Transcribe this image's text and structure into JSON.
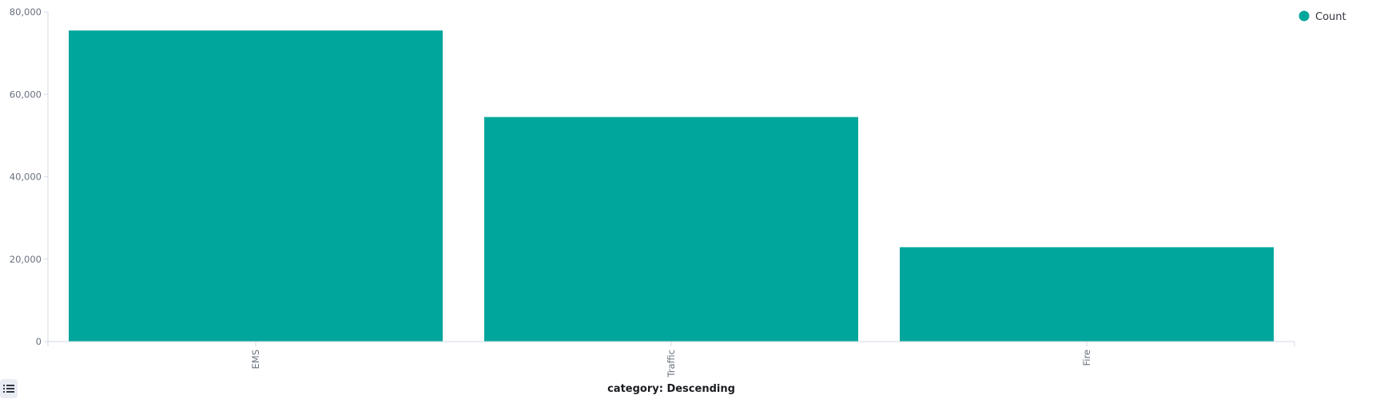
{
  "chart_data": {
    "type": "bar",
    "categories": [
      "EMS",
      "Traffic",
      "Fire"
    ],
    "series": [
      {
        "name": "Count",
        "values": [
          75500,
          54500,
          22900
        ]
      }
    ],
    "xlabel": "category: Descending",
    "ylabel": "",
    "ylim": [
      0,
      80000
    ],
    "yticks": [
      0,
      20000,
      40000,
      60000,
      80000
    ],
    "ytick_labels": [
      "0",
      "20,000",
      "40,000",
      "60,000",
      "80,000"
    ],
    "grid": false,
    "legend_position": "top-right",
    "bar_color": "#00a69b"
  },
  "legend_toggle": {
    "icon": "list-icon"
  }
}
